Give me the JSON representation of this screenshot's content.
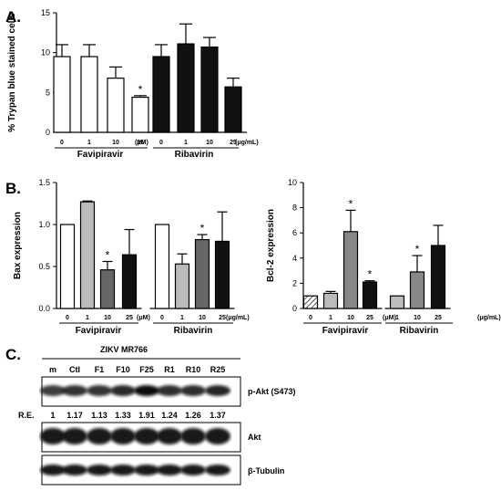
{
  "panels": [
    "A.",
    "B.",
    "C."
  ],
  "chart_data": [
    {
      "type": "bar",
      "ylabel": "% Trypan blue stained cells",
      "ylim": [
        0,
        15
      ],
      "yticks": [
        "0",
        "5",
        "10",
        "15"
      ],
      "categories": [
        "0",
        "1",
        "10",
        "25",
        "0",
        "1",
        "10",
        "25"
      ],
      "unit_labels": [
        "(μM)",
        "(μg/mL)"
      ],
      "groups": [
        "Favipiravir",
        "Ribavirin"
      ],
      "values": [
        9.5,
        9.5,
        6.8,
        4.4,
        9.5,
        11.1,
        10.7,
        5.7
      ],
      "errors": [
        1.5,
        1.5,
        1.4,
        0.2,
        1.5,
        2.5,
        1.2,
        1.1
      ],
      "fills": [
        "#ffffff",
        "#ffffff",
        "#ffffff",
        "#ffffff",
        "#111111",
        "#111111",
        "#111111",
        "#111111"
      ],
      "significance": [
        "",
        "",
        "",
        "*",
        "",
        "",
        "",
        ""
      ]
    },
    {
      "type": "bar",
      "ylabel": "Bax expression",
      "ylim": [
        0,
        1.5
      ],
      "yticks": [
        "0.0",
        "0.5",
        "1.0",
        "1.5"
      ],
      "categories": [
        "0",
        "1",
        "10",
        "25",
        "0",
        "1",
        "10",
        "25"
      ],
      "unit_labels": [
        "(μM)",
        "(μg/mL)"
      ],
      "groups": [
        "Favipiravir",
        "Ribavirin"
      ],
      "values": [
        1.0,
        1.27,
        0.46,
        0.64,
        1.0,
        0.53,
        0.82,
        0.8
      ],
      "errors": [
        0,
        0.01,
        0.1,
        0.3,
        0,
        0.12,
        0.06,
        0.35
      ],
      "fills": [
        "#ffffff",
        "#bbbbbb",
        "#666666",
        "#111111",
        "#ffffff",
        "#bbbbbb",
        "#666666",
        "#111111"
      ],
      "significance": [
        "",
        "",
        "*",
        "",
        "",
        "",
        "*",
        ""
      ]
    },
    {
      "type": "bar",
      "ylabel": "Bcl-2 expression",
      "ylim": [
        0,
        10
      ],
      "yticks": [
        "0",
        "2",
        "4",
        "6",
        "8",
        "10"
      ],
      "categories": [
        "0",
        "1",
        "10",
        "25",
        "1",
        "10",
        "25"
      ],
      "unit_labels": [
        "(μM)",
        "(μg/mL)"
      ],
      "groups": [
        "Favipiravir",
        "Ribavirin"
      ],
      "values": [
        1.0,
        1.2,
        6.1,
        2.1,
        1.0,
        2.9,
        5.0
      ],
      "errors": [
        0,
        0.15,
        1.7,
        0.1,
        0,
        1.3,
        1.6
      ],
      "fills": [
        "hatch",
        "#bbbbbb",
        "#888888",
        "#111111",
        "#bbbbbb",
        "#888888",
        "#111111"
      ],
      "significance": [
        "",
        "",
        "*",
        "*",
        "",
        "*",
        ""
      ]
    }
  ],
  "blot": {
    "title": "ZIKV  MR766",
    "lanes": [
      "m",
      "Ctl",
      "F1",
      "F10",
      "F25",
      "R1",
      "R10",
      "R25"
    ],
    "re_label": "R.E.",
    "re_values": [
      "1",
      "1.17",
      "1.13",
      "1.33",
      "1.91",
      "1.24",
      "1.26",
      "1.37"
    ],
    "rows": [
      "p-Akt (S473)",
      "Akt",
      "β-Tubulin"
    ]
  }
}
